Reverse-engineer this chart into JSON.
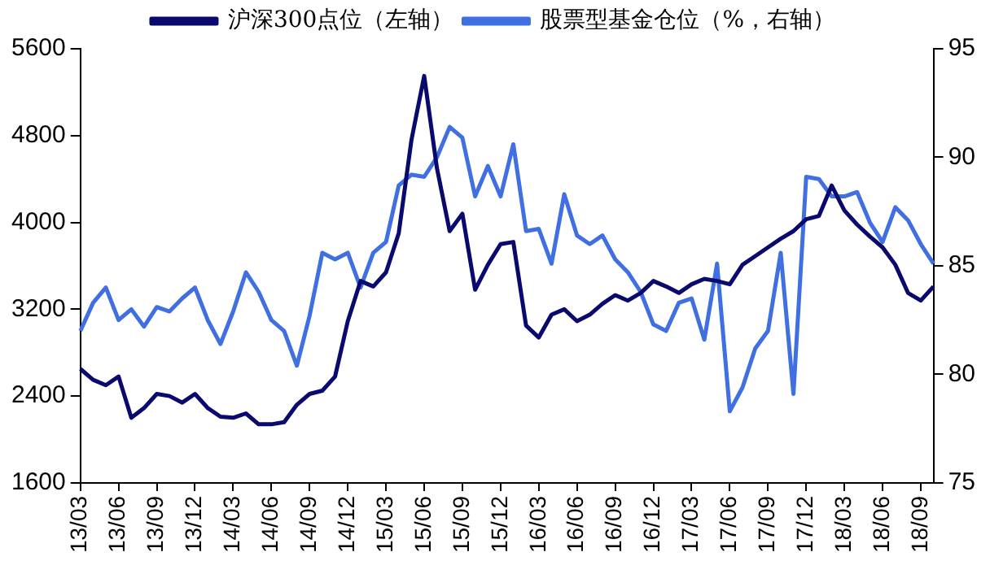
{
  "chart_data": {
    "type": "line",
    "categories": [
      "13/03",
      null,
      null,
      "13/06",
      null,
      null,
      "13/09",
      null,
      null,
      "13/12",
      null,
      null,
      "14/03",
      null,
      null,
      "14/06",
      null,
      null,
      "14/09",
      null,
      null,
      "14/12",
      null,
      null,
      "15/03",
      null,
      null,
      "15/06",
      null,
      null,
      "15/09",
      null,
      null,
      "15/12",
      null,
      null,
      "16/03",
      null,
      null,
      "16/06",
      null,
      null,
      "16/09",
      null,
      null,
      "16/12",
      null,
      null,
      "17/03",
      null,
      null,
      "17/06",
      null,
      null,
      "17/09",
      null,
      null,
      "17/12",
      null,
      null,
      "18/03",
      null,
      null,
      "18/06",
      null,
      null,
      "18/09",
      null
    ],
    "series": [
      {
        "name": "沪深300点位（左轴）",
        "color": "#0a0a6e",
        "values": [
          2650,
          2550,
          2500,
          2580,
          2200,
          2290,
          2420,
          2400,
          2340,
          2420,
          2290,
          2210,
          2200,
          2240,
          2140,
          2140,
          2160,
          2320,
          2420,
          2450,
          2580,
          3090,
          3460,
          3410,
          3540,
          3900,
          4760,
          5350,
          4500,
          3920,
          4080,
          3380,
          3610,
          3800,
          3820,
          3050,
          2940,
          3150,
          3200,
          3090,
          3150,
          3250,
          3330,
          3280,
          3350,
          3460,
          3410,
          3350,
          3430,
          3480,
          3460,
          3430,
          3610,
          3690,
          3770,
          3850,
          3920,
          4030,
          4060,
          4340,
          4110,
          3980,
          3870,
          3770,
          3610,
          3350,
          3280,
          3410
        ]
      },
      {
        "name": "股票型基金仓位（%，右轴）",
        "color": "#3f6fe0",
        "axis": "y2",
        "values": [
          82.0,
          83.3,
          84.0,
          82.5,
          83.0,
          82.2,
          83.1,
          82.9,
          83.5,
          84.0,
          82.5,
          81.4,
          82.9,
          84.7,
          83.8,
          82.5,
          82.0,
          80.4,
          82.7,
          85.6,
          85.3,
          85.6,
          84.0,
          85.6,
          86.1,
          88.7,
          89.2,
          89.1,
          90.0,
          91.4,
          90.9,
          88.2,
          89.6,
          88.2,
          90.6,
          86.6,
          86.7,
          85.1,
          88.3,
          86.4,
          86.0,
          86.4,
          85.3,
          84.7,
          83.8,
          82.3,
          82.0,
          83.3,
          83.5,
          81.6,
          85.1,
          78.3,
          79.4,
          81.2,
          82.0,
          85.6,
          79.1,
          89.1,
          89.0,
          88.2,
          88.2,
          88.4,
          87.0,
          86.1,
          87.7,
          87.1,
          86.0,
          85.1
        ]
      }
    ],
    "ylim": [
      1600,
      5600
    ],
    "yticks": [
      1600,
      2400,
      3200,
      4000,
      4800,
      5600
    ],
    "y2lim": [
      75,
      95
    ],
    "y2ticks": [
      75,
      80,
      85,
      90,
      95
    ],
    "legend": "top",
    "marker": "none",
    "line_style": "solid"
  }
}
